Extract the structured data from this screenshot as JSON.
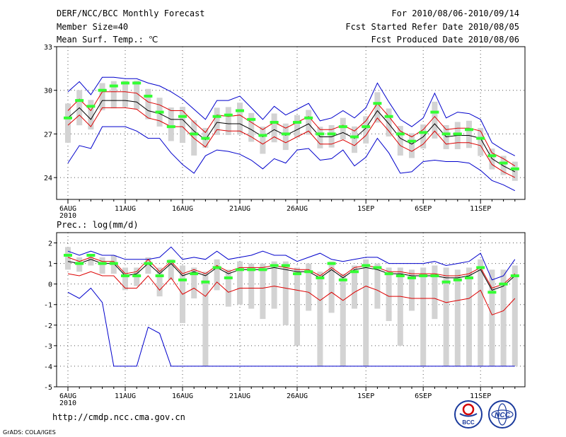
{
  "header": {
    "title": "DERF/NCC/BCC Monthly Forecast",
    "member_size": "Member Size=40",
    "variable": "Mean Surf. Temp.: ℃",
    "period": "For 2010/08/06-2010/09/14",
    "refer_date": "Fcst Started Refer Date 2010/08/05",
    "produced_date": "Fcst Produced Date 2010/08/06"
  },
  "footer": {
    "url": "http://cmdp.ncc.cma.gov.cn",
    "grads": "GrADS: COLA/IGES",
    "logo_bcc": "BCC",
    "logo_ncc": "NCC"
  },
  "colors": {
    "box": "#d3d3d3",
    "median": "#33ff33",
    "mean": "#000000",
    "std": "#dd0000",
    "range": "#0000cc",
    "grid": "#555555"
  },
  "chart_data": [
    {
      "type": "box",
      "title": "Mean Surf. Temp.: ℃",
      "ylim": [
        22.5,
        33
      ],
      "yticks": [
        "24",
        "27",
        "30",
        "33"
      ],
      "ytick_values": [
        24,
        27,
        30,
        33
      ],
      "xtick_labels": [
        "6AUG",
        "11AUG",
        "16AUG",
        "21AUG",
        "26AUG",
        "1SEP",
        "6SEP",
        "11SEP"
      ],
      "xtick_sublabel": "2010",
      "xtick_day_index": [
        0,
        5,
        10,
        15,
        20,
        26,
        31,
        36
      ],
      "median": [
        28.1,
        29.3,
        28.9,
        30.0,
        30.3,
        30.5,
        30.5,
        29.6,
        28.5,
        27.5,
        28.2,
        27.0,
        26.7,
        28.2,
        28.3,
        28.6,
        28.0,
        26.9,
        27.8,
        27.0,
        27.8,
        28.1,
        27.0,
        27.0,
        27.5,
        26.8,
        27.5,
        29.1,
        28.2,
        27.0,
        26.5,
        27.1,
        28.5,
        27.0,
        27.0,
        27.3,
        26.7,
        25.5,
        25.0,
        24.6
      ],
      "mean": [
        28.1,
        28.8,
        28.0,
        29.3,
        29.3,
        29.3,
        29.2,
        28.6,
        28.4,
        28.0,
        28.0,
        27.2,
        26.6,
        27.8,
        27.7,
        27.7,
        27.3,
        26.8,
        27.3,
        26.9,
        27.3,
        27.7,
        26.8,
        26.8,
        27.1,
        26.7,
        27.4,
        28.6,
        27.7,
        26.7,
        26.3,
        26.8,
        27.7,
        26.8,
        26.9,
        26.9,
        26.7,
        25.3,
        24.8,
        24.4
      ],
      "std_upper": [
        28.6,
        29.4,
        28.6,
        29.9,
        29.9,
        29.9,
        29.8,
        29.2,
        29.0,
        28.6,
        28.6,
        27.8,
        27.1,
        28.3,
        28.2,
        28.3,
        27.8,
        27.3,
        27.8,
        27.4,
        27.8,
        28.2,
        27.3,
        27.3,
        27.6,
        27.2,
        27.9,
        29.1,
        28.2,
        27.2,
        26.8,
        27.3,
        28.2,
        27.3,
        27.4,
        27.4,
        27.2,
        25.7,
        25.3,
        24.8
      ],
      "std_lower": [
        27.6,
        28.3,
        27.5,
        28.8,
        28.8,
        28.8,
        28.7,
        28.1,
        27.9,
        27.5,
        27.5,
        26.7,
        26.1,
        27.3,
        27.2,
        27.2,
        26.8,
        26.3,
        26.8,
        26.4,
        26.8,
        27.2,
        26.3,
        26.3,
        26.6,
        26.2,
        26.9,
        28.1,
        27.2,
        26.2,
        25.8,
        26.3,
        27.2,
        26.3,
        26.4,
        26.4,
        26.2,
        24.9,
        24.4,
        24.0
      ],
      "max": [
        29.9,
        30.6,
        29.7,
        30.9,
        30.9,
        30.8,
        30.8,
        30.5,
        30.3,
        29.9,
        29.4,
        28.7,
        28.0,
        29.3,
        29.3,
        29.6,
        28.8,
        28.0,
        28.9,
        28.3,
        28.7,
        29.1,
        27.9,
        28.1,
        28.6,
        28.1,
        28.8,
        30.5,
        29.2,
        28.0,
        27.5,
        28.1,
        29.8,
        28.1,
        28.5,
        28.4,
        28.0,
        26.4,
        25.9,
        25.5
      ],
      "min": [
        25.0,
        26.2,
        26.0,
        27.5,
        27.5,
        27.5,
        27.2,
        26.7,
        26.7,
        25.7,
        24.9,
        24.3,
        25.5,
        25.9,
        25.8,
        25.6,
        25.2,
        24.6,
        25.3,
        25.0,
        25.9,
        26.0,
        25.2,
        25.3,
        25.9,
        24.8,
        25.4,
        26.7,
        25.7,
        24.3,
        24.4,
        25.1,
        25.2,
        25.1,
        25.1,
        25.0,
        24.5,
        23.8,
        23.5,
        23.1
      ]
    },
    {
      "type": "box",
      "title": "Prec.: log(mm/d)",
      "ylim": [
        -5,
        2.5
      ],
      "yticks": [
        "-5",
        "-4",
        "-3",
        "-2",
        "-1",
        "0",
        "1",
        "2"
      ],
      "ytick_values": [
        -5,
        -4,
        -3,
        -2,
        -1,
        0,
        1,
        2
      ],
      "xtick_labels": [
        "6AUG",
        "11AUG",
        "16AUG",
        "21AUG",
        "26AUG",
        "1SEP",
        "6SEP",
        "11SEP"
      ],
      "xtick_sublabel": "2010",
      "xtick_day_index": [
        0,
        5,
        10,
        15,
        20,
        26,
        31,
        36
      ],
      "median": [
        1.4,
        1.0,
        1.4,
        1.0,
        1.0,
        0.4,
        0.4,
        1.0,
        0.4,
        1.1,
        0.2,
        0.5,
        0.1,
        0.8,
        0.3,
        0.7,
        0.7,
        0.7,
        0.9,
        0.9,
        0.5,
        0.6,
        0.3,
        1.0,
        0.2,
        0.6,
        0.9,
        0.8,
        0.5,
        0.4,
        0.3,
        0.4,
        0.4,
        0.1,
        0.2,
        0.3,
        0.8,
        -0.4,
        0.0,
        0.4
      ],
      "mean": [
        1.1,
        1.0,
        1.2,
        1.0,
        1.0,
        0.4,
        0.5,
        1.0,
        0.5,
        1.0,
        0.4,
        0.6,
        0.4,
        0.8,
        0.5,
        0.7,
        0.7,
        0.7,
        0.8,
        0.7,
        0.6,
        0.6,
        0.3,
        0.7,
        0.3,
        0.7,
        0.8,
        0.7,
        0.5,
        0.5,
        0.4,
        0.4,
        0.4,
        0.3,
        0.3,
        0.4,
        0.7,
        -0.3,
        -0.1,
        0.4
      ],
      "std_upper": [
        1.3,
        1.1,
        1.3,
        1.1,
        1.1,
        0.5,
        0.6,
        1.2,
        0.6,
        1.1,
        0.5,
        0.7,
        0.5,
        0.9,
        0.6,
        0.8,
        0.8,
        0.8,
        0.9,
        0.8,
        0.7,
        0.7,
        0.4,
        0.8,
        0.4,
        0.8,
        0.9,
        0.8,
        0.6,
        0.6,
        0.5,
        0.5,
        0.5,
        0.4,
        0.4,
        0.5,
        0.8,
        -0.2,
        0.0,
        0.5
      ],
      "std_lower": [
        0.5,
        0.4,
        0.6,
        0.4,
        0.4,
        -0.2,
        -0.2,
        0.4,
        -0.3,
        0.3,
        -0.5,
        -0.2,
        -0.6,
        0.1,
        -0.4,
        -0.2,
        -0.2,
        -0.2,
        -0.1,
        -0.2,
        -0.3,
        -0.4,
        -0.8,
        -0.4,
        -0.8,
        -0.4,
        -0.1,
        -0.3,
        -0.6,
        -0.6,
        -0.7,
        -0.7,
        -0.7,
        -0.9,
        -0.8,
        -0.7,
        -0.3,
        -1.5,
        -1.3,
        -0.7
      ],
      "max": [
        1.6,
        1.4,
        1.6,
        1.4,
        1.4,
        1.2,
        1.2,
        1.2,
        1.3,
        1.8,
        1.2,
        1.3,
        1.2,
        1.6,
        1.2,
        1.3,
        1.4,
        1.6,
        1.4,
        1.4,
        1.1,
        1.3,
        1.5,
        1.2,
        1.1,
        1.2,
        1.3,
        1.3,
        1.0,
        1.0,
        1.0,
        1.0,
        1.1,
        0.9,
        1.0,
        1.1,
        1.5,
        0.2,
        0.4,
        1.2
      ],
      "min": [
        -0.4,
        -0.7,
        -0.2,
        -0.9,
        -4.0,
        -4.0,
        -4.0,
        -2.1,
        -2.4,
        -4.0,
        -4.0,
        -4.0,
        -4.0,
        -4.0,
        -4.0,
        -4.0,
        -4.0,
        -4.0,
        -4.0,
        -4.0,
        -4.0,
        -4.0,
        -4.0,
        -4.0,
        -4.0,
        -4.0,
        -4.0,
        -4.0,
        -4.0,
        -4.0,
        -4.0,
        -4.0,
        -4.0,
        -4.0,
        -4.0,
        -4.0,
        -4.0,
        -4.0,
        -4.0,
        -4.0
      ],
      "q75": [
        1.8,
        1.3,
        1.4,
        1.3,
        1.4,
        0.8,
        0.8,
        1.3,
        0.8,
        1.2,
        0.9,
        0.8,
        0.6,
        1.2,
        0.7,
        1.1,
        1.0,
        1.0,
        1.1,
        1.1,
        0.8,
        1.0,
        0.6,
        1.1,
        0.5,
        0.9,
        1.2,
        1.0,
        0.8,
        0.8,
        0.7,
        0.8,
        0.9,
        0.8,
        0.7,
        0.8,
        1.2,
        0.7,
        0.7,
        0.9
      ],
      "q25": [
        0.7,
        0.6,
        0.9,
        0.5,
        0.5,
        -0.3,
        -0.1,
        0.5,
        -0.6,
        0.2,
        -1.9,
        -0.7,
        -4.0,
        -0.3,
        -1.1,
        -1.0,
        -1.2,
        -1.7,
        -1.2,
        -2.0,
        -3.0,
        -1.3,
        -4.0,
        -1.4,
        -4.0,
        -1.2,
        -4.0,
        -1.2,
        -1.8,
        -3.0,
        -1.3,
        -4.0,
        -1.7,
        -4.0,
        -4.0,
        -4.0,
        -4.0,
        -4.0,
        -4.0,
        -4.0
      ]
    }
  ]
}
